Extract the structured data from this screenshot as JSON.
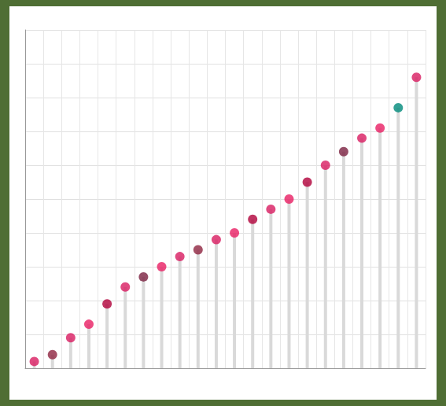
{
  "chart_data": {
    "type": "bar",
    "categories": [
      null,
      null,
      null,
      null,
      null,
      null,
      null,
      null,
      null,
      null,
      null,
      null,
      null,
      null,
      null,
      null,
      null,
      null,
      null,
      null,
      null,
      null
    ],
    "values": [
      2,
      4,
      9,
      13,
      19,
      24,
      27,
      30,
      33,
      35,
      38,
      40,
      44,
      47,
      50,
      55,
      60,
      64,
      68,
      71,
      77,
      86
    ],
    "color": "#d9d9d9",
    "marker": "circle",
    "colors": [
      "#d81b60",
      "#8e2440",
      "#d81b60",
      "#e91e63",
      "#b0003a",
      "#d81b60",
      "#7a2040",
      "#e91e63",
      "#d81b60",
      "#8e2440",
      "#d81b60",
      "#e91e63",
      "#b0003a",
      "#d81b60",
      "#e91e63",
      "#b0003a",
      "#d81b60",
      "#7a2040",
      "#d81b60",
      "#e91e63",
      "#00897b",
      "#d81b60"
    ],
    "ylim": [
      0,
      100
    ],
    "yticks": [
      0,
      10,
      20,
      30,
      40,
      50,
      60,
      70,
      80,
      90,
      100
    ],
    "grid": true,
    "tick_labels": false
  }
}
